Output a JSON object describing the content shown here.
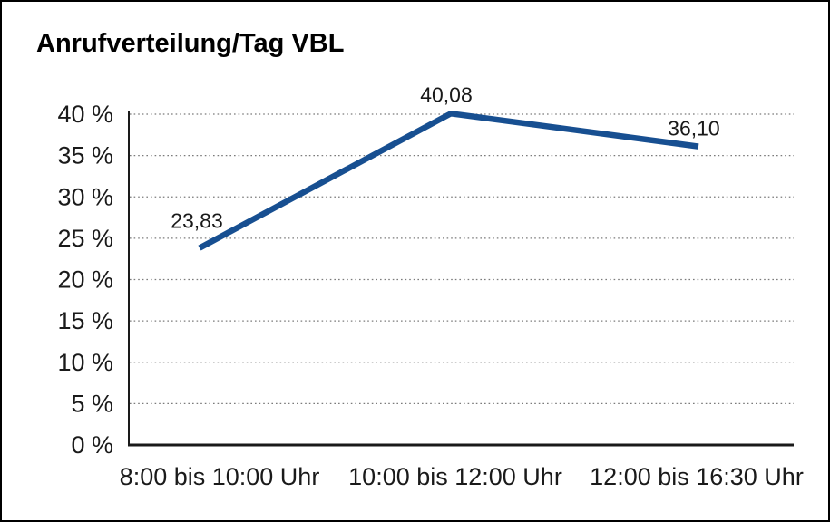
{
  "window": {
    "background_color": "#ffffff",
    "frame_border_color": "#000000"
  },
  "chart_data": {
    "type": "line",
    "title": "Anrufverteilung/Tag VBL",
    "categories": [
      "8:00 bis 10:00 Uhr",
      "10:00 bis 12:00 Uhr",
      "12:00 bis 16:30 Uhr"
    ],
    "series": [
      {
        "name": "Anrufverteilung",
        "values": [
          23.83,
          40.08,
          36.1
        ],
        "point_labels": [
          "23,83",
          "40,08",
          "36,10"
        ],
        "color": "#174f91"
      }
    ],
    "xlabel": "",
    "ylabel": "",
    "ylim": [
      0,
      40
    ],
    "y_ticks": [
      0,
      5,
      10,
      15,
      20,
      25,
      30,
      35,
      40
    ],
    "y_tick_labels": [
      "0 %",
      "5 %",
      "10 %",
      "15 %",
      "20 %",
      "25 %",
      "30 %",
      "35 %",
      "40 %"
    ],
    "grid": "horizontal-dotted",
    "grid_color": "#7b7b7b",
    "axis_color": "#1a1a1a",
    "legend": "none"
  }
}
